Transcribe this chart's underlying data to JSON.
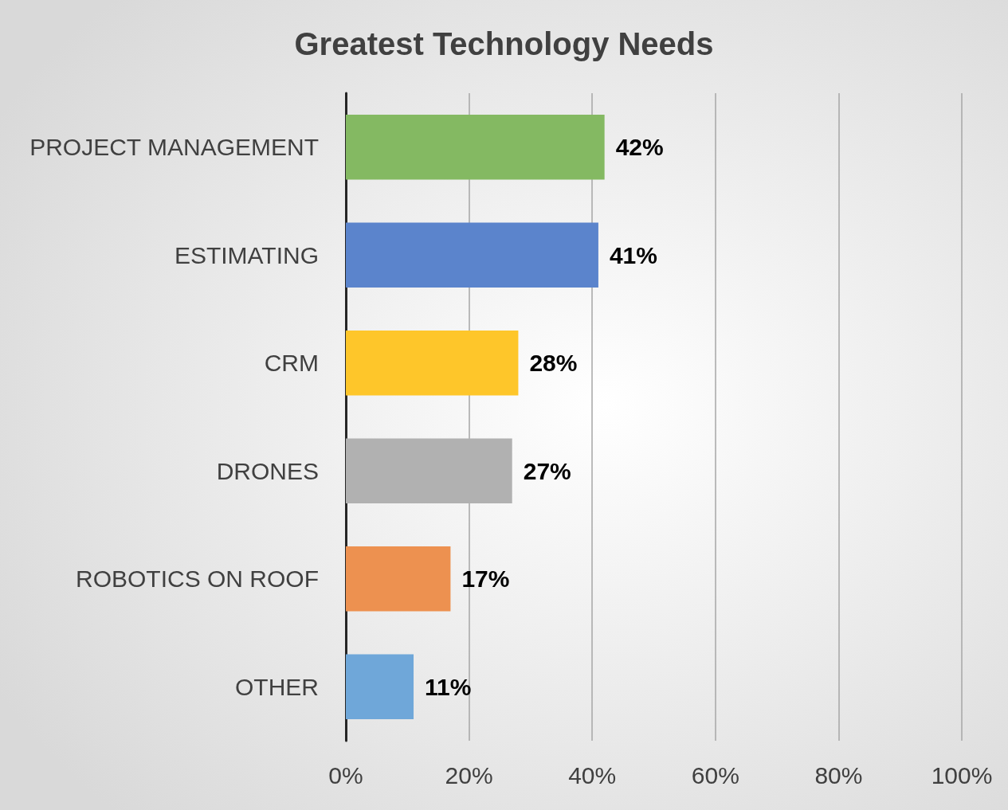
{
  "chart_data": {
    "type": "bar",
    "orientation": "horizontal",
    "title": "Greatest Technology Needs",
    "categories": [
      "PROJECT MANAGEMENT",
      "ESTIMATING",
      "CRM",
      "DRONES",
      "ROBOTICS ON ROOF",
      "OTHER"
    ],
    "values": [
      42,
      41,
      28,
      27,
      17,
      11
    ],
    "colors": [
      "#84b962",
      "#5b84cc",
      "#fec62a",
      "#b1b1b1",
      "#ed9150",
      "#6fa7d9"
    ],
    "value_labels": [
      "42%",
      "41%",
      "28%",
      "27%",
      "17%",
      "11%"
    ],
    "xlim": [
      0,
      100
    ],
    "xticks": [
      {
        "value": 0,
        "label": "0%"
      },
      {
        "value": 20,
        "label": "20%"
      },
      {
        "value": 40,
        "label": "40%"
      },
      {
        "value": 60,
        "label": "60%"
      },
      {
        "value": 80,
        "label": "80%"
      },
      {
        "value": 100,
        "label": "100%"
      }
    ],
    "grid": "x"
  }
}
